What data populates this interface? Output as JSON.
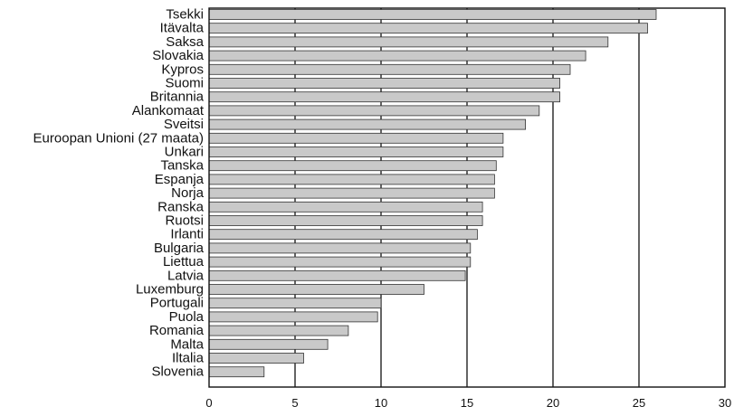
{
  "chart_data": {
    "type": "bar",
    "orientation": "horizontal",
    "title": "",
    "xlabel": "",
    "ylabel": "",
    "categories": [
      "Tsekki",
      "Itävalta",
      "Saksa",
      "Slovakia",
      "Kypros",
      "Suomi",
      "Britannia",
      "Alankomaat",
      "Sveitsi",
      "Euroopan Unioni (27 maata)",
      "Unkari",
      "Tanska",
      "Espanja",
      "Norja",
      "Ranska",
      "Ruotsi",
      "Irlanti",
      "Bulgaria",
      "Liettua",
      "Latvia",
      "Luxemburg",
      "Portugali",
      "Puola",
      "Romania",
      "Malta",
      "Iltalia",
      "Slovenia"
    ],
    "values": [
      26,
      25.5,
      23.2,
      21.9,
      21,
      20.4,
      20.4,
      19.2,
      18.4,
      17.1,
      17.1,
      16.7,
      16.6,
      16.6,
      15.9,
      15.9,
      15.6,
      15.2,
      15.2,
      14.9,
      12.5,
      10,
      9.8,
      8.1,
      6.9,
      5.5,
      3.2
    ],
    "xlim": [
      0,
      30
    ],
    "xticks": [
      "0",
      "5",
      "10",
      "15",
      "20",
      "25",
      "30"
    ],
    "grid": "vertical at ticks",
    "legend": "none",
    "colors": {
      "bar_fill": "#c9c9c9",
      "bar_stroke": "#333333",
      "axis": "#111111",
      "grid": "#111111"
    }
  }
}
